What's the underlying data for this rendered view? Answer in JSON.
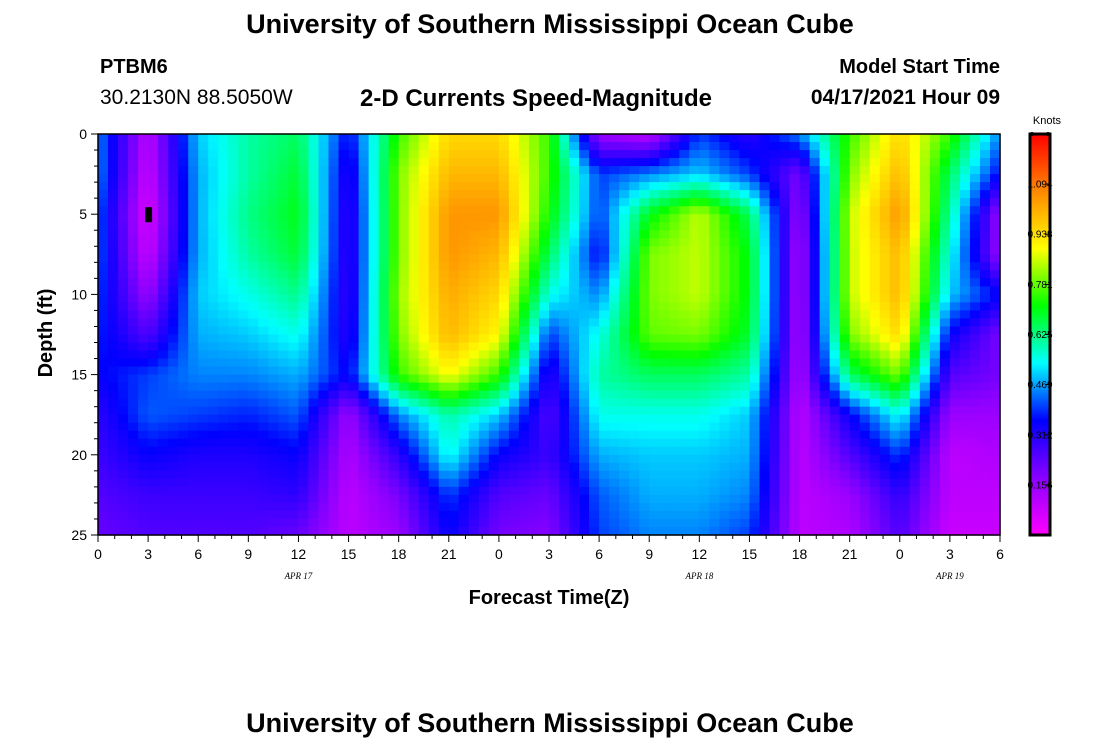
{
  "header": {
    "title_top": "University of Southern Mississippi Ocean Cube",
    "title_bottom": "University of Southern Mississippi Ocean Cube",
    "station_id": "PTBM6",
    "station_coords": "30.2130N  88.5050W",
    "model_start_label": "Model Start Time",
    "model_start_value": "04/17/2021 Hour 09"
  },
  "chart_data": {
    "type": "heatmap",
    "title": "2-D Currents Speed-Magnitude",
    "xlabel": "Forecast Time(Z)",
    "ylabel": "Depth (ft)",
    "x_range_hours": [
      0,
      54
    ],
    "y_range_ft": [
      0,
      25
    ],
    "y_ticks": [
      "0",
      "5",
      "10",
      "15",
      "20",
      "25"
    ],
    "x_ticks": [
      "0",
      "3",
      "6",
      "9",
      "12",
      "15",
      "18",
      "21",
      "0",
      "3",
      "6",
      "9",
      "12",
      "15",
      "18",
      "21",
      "0",
      "3",
      "6"
    ],
    "date_labels": [
      {
        "text": "APR 17",
        "at_hour": 12
      },
      {
        "text": "APR 18",
        "at_hour": 36
      },
      {
        "text": "APR 19",
        "at_hour": 51
      }
    ],
    "colorbar": {
      "unit": "Knots",
      "min": 0.0,
      "max": 1.25,
      "tick_labels": [
        "1.094",
        "0.938",
        "0.781",
        "0.625",
        "0.469",
        "0.312",
        "0.156"
      ],
      "tick_values": [
        1.094,
        0.938,
        0.781,
        0.625,
        0.469,
        0.312,
        0.156
      ],
      "colormap": [
        "#ff00ff",
        "#8800ff",
        "#0000ff",
        "#00ffff",
        "#00ff00",
        "#ffff00",
        "#ff8800",
        "#ff0000"
      ]
    },
    "marker": {
      "x_hour": 3,
      "depth_ft": 5
    },
    "speed_field": {
      "description": "Current speed (knots) sampled at forecast hours (columns) and depths (rows)",
      "hours": [
        0,
        3,
        6,
        9,
        12,
        15,
        18,
        21,
        24,
        27,
        30,
        33,
        36,
        39,
        42,
        45,
        48,
        51,
        54
      ],
      "depths_ft": [
        0,
        2.5,
        5,
        7.5,
        10,
        12.5,
        15,
        17.5,
        20,
        22.5,
        25
      ],
      "values": [
        [
          0.45,
          0.1,
          0.5,
          0.6,
          0.65,
          0.35,
          0.75,
          0.95,
          0.95,
          0.75,
          0.15,
          0.1,
          0.4,
          0.3,
          0.45,
          0.75,
          0.95,
          0.75,
          0.45
        ],
        [
          0.45,
          0.08,
          0.48,
          0.6,
          0.68,
          0.3,
          0.8,
          1.0,
          1.0,
          0.75,
          0.4,
          0.45,
          0.5,
          0.4,
          0.2,
          0.8,
          1.0,
          0.65,
          0.35
        ],
        [
          0.42,
          0.05,
          0.48,
          0.62,
          0.7,
          0.28,
          0.8,
          1.05,
          1.05,
          0.72,
          0.4,
          0.7,
          0.85,
          0.65,
          0.15,
          0.85,
          1.05,
          0.6,
          0.15
        ],
        [
          0.42,
          0.08,
          0.48,
          0.6,
          0.68,
          0.28,
          0.8,
          1.05,
          1.0,
          0.65,
          0.35,
          0.8,
          0.85,
          0.7,
          0.12,
          0.85,
          1.0,
          0.55,
          0.15
        ],
        [
          0.4,
          0.15,
          0.5,
          0.55,
          0.62,
          0.28,
          0.82,
          1.02,
          0.95,
          0.55,
          0.45,
          0.8,
          0.85,
          0.7,
          0.12,
          0.85,
          1.0,
          0.5,
          0.35
        ],
        [
          0.38,
          0.25,
          0.48,
          0.5,
          0.55,
          0.3,
          0.8,
          1.0,
          0.9,
          0.4,
          0.55,
          0.78,
          0.8,
          0.68,
          0.12,
          0.8,
          0.95,
          0.35,
          0.2
        ],
        [
          0.35,
          0.4,
          0.45,
          0.45,
          0.48,
          0.35,
          0.75,
          0.9,
          0.75,
          0.3,
          0.6,
          0.65,
          0.65,
          0.6,
          0.12,
          0.65,
          0.8,
          0.25,
          0.2
        ],
        [
          0.3,
          0.42,
          0.4,
          0.38,
          0.42,
          0.15,
          0.45,
          0.6,
          0.5,
          0.25,
          0.55,
          0.55,
          0.55,
          0.5,
          0.1,
          0.35,
          0.55,
          0.15,
          0.15
        ],
        [
          0.28,
          0.35,
          0.32,
          0.32,
          0.35,
          0.12,
          0.3,
          0.55,
          0.35,
          0.28,
          0.48,
          0.5,
          0.5,
          0.48,
          0.1,
          0.25,
          0.4,
          0.1,
          0.12
        ],
        [
          0.25,
          0.28,
          0.28,
          0.28,
          0.3,
          0.1,
          0.2,
          0.4,
          0.25,
          0.22,
          0.42,
          0.48,
          0.48,
          0.45,
          0.1,
          0.15,
          0.3,
          0.1,
          0.1
        ],
        [
          0.22,
          0.25,
          0.25,
          0.25,
          0.22,
          0.1,
          0.15,
          0.35,
          0.2,
          0.18,
          0.4,
          0.45,
          0.45,
          0.4,
          0.1,
          0.12,
          0.25,
          0.08,
          0.08
        ]
      ]
    }
  }
}
